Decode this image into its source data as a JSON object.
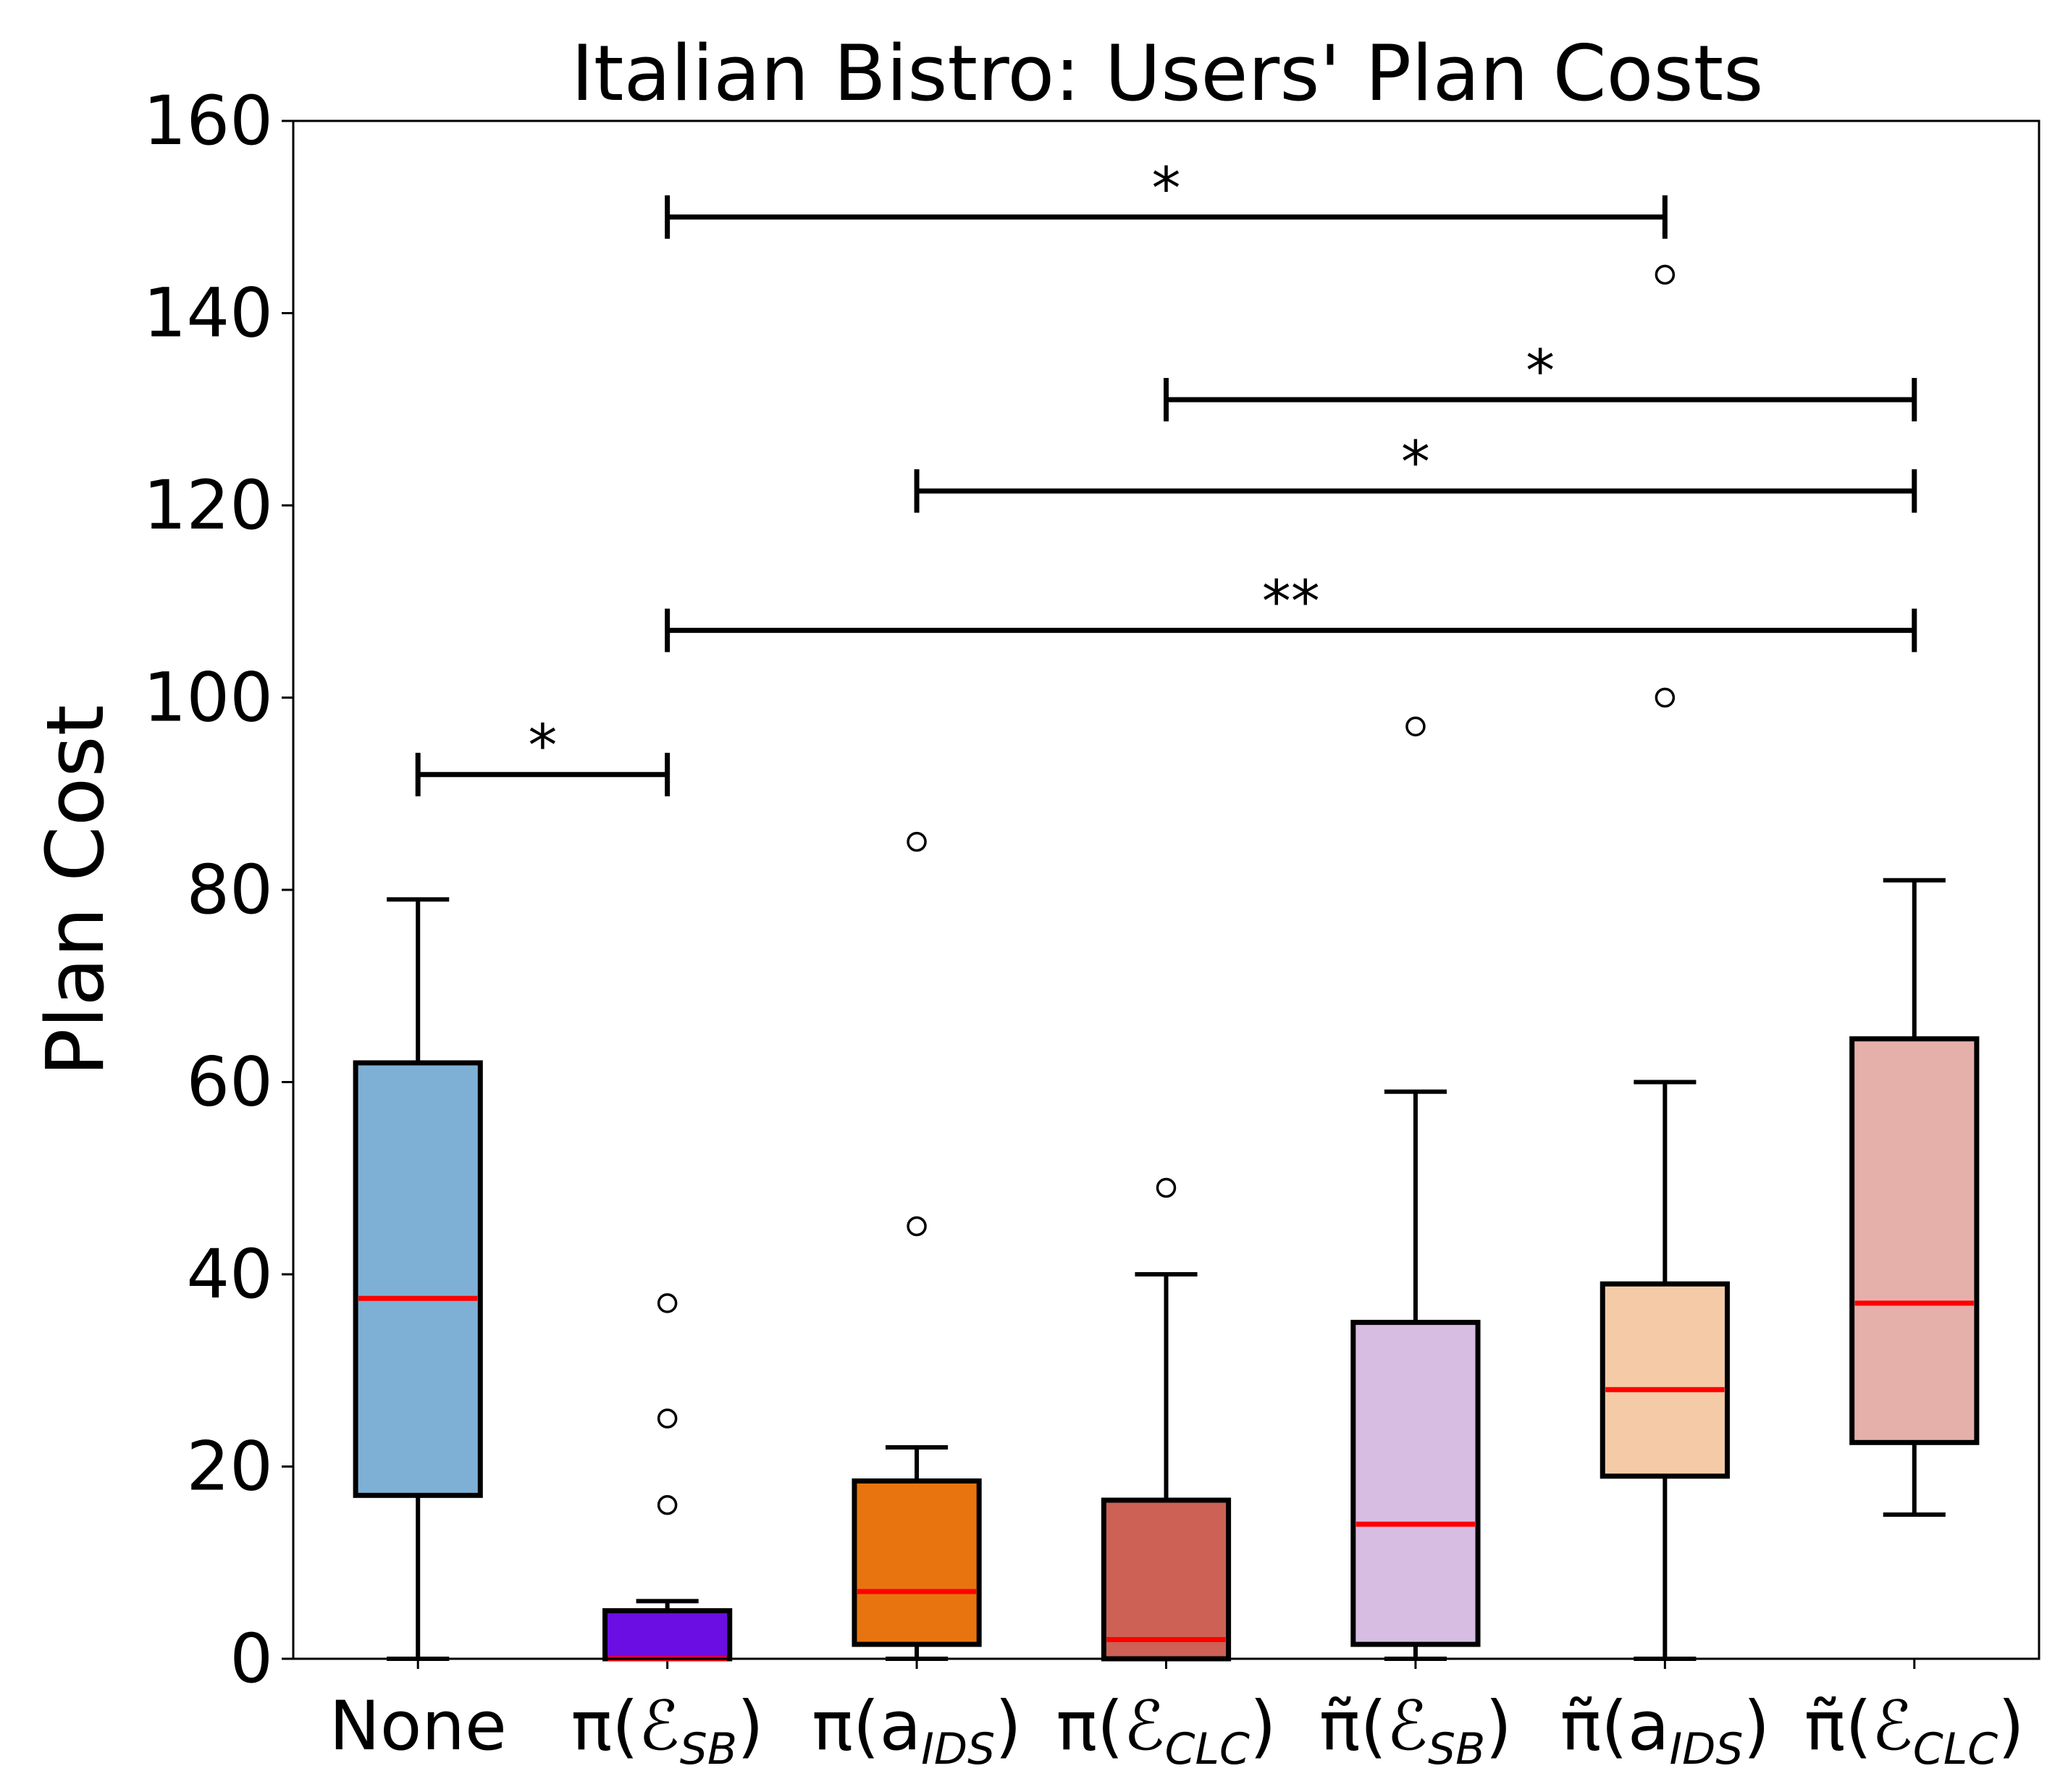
{
  "chart_data": {
    "type": "box",
    "title": "Italian Bistro: Users' Plan Costs",
    "xlabel": "",
    "ylabel": "Plan Cost",
    "ylim": [
      0,
      160
    ],
    "yticks": [
      "0",
      "20",
      "40",
      "60",
      "80",
      "100",
      "120",
      "140",
      "160"
    ],
    "grid": false,
    "median_color": "#ff0000",
    "series": [
      {
        "label": "None",
        "main": "None",
        "sub": "",
        "color": "#7eb0d5",
        "whisker_low": 0,
        "q1": 17,
        "median": 37.5,
        "q3": 62,
        "whisker_high": 79,
        "outliers": []
      },
      {
        "label": "π(ℰSB)",
        "main": "π(ℰ",
        "sub": "SB",
        "color": "#6a0ee3",
        "whisker_low": 0,
        "q1": 0,
        "median": 0,
        "q3": 5,
        "whisker_high": 6,
        "outliers": [
          16,
          25,
          37
        ]
      },
      {
        "label": "π(aIDS)",
        "main": "π(a",
        "sub": "IDS",
        "color": "#e8740f",
        "whisker_low": 0,
        "q1": 1.5,
        "median": 7,
        "q3": 18.5,
        "whisker_high": 22,
        "outliers": [
          45,
          85
        ]
      },
      {
        "label": "π(ℰCLC)",
        "main": "π(ℰ",
        "sub": "CLC",
        "color": "#cd6155",
        "whisker_low": 0,
        "q1": 0,
        "median": 2,
        "q3": 16.5,
        "whisker_high": 40,
        "outliers": [
          49
        ]
      },
      {
        "label": "π̃(ℰSB)",
        "main": "π̃(ℰ",
        "sub": "SB",
        "color": "#d7bde2",
        "whisker_low": 0,
        "q1": 1.5,
        "median": 14,
        "q3": 35,
        "whisker_high": 59,
        "outliers": [
          97
        ]
      },
      {
        "label": "π̃(aIDS)",
        "main": "π̃(a",
        "sub": "IDS",
        "color": "#f5cba7",
        "whisker_low": 0,
        "q1": 19,
        "median": 28,
        "q3": 39,
        "whisker_high": 60,
        "outliers": [
          100,
          144
        ]
      },
      {
        "label": "π̃(ℰCLC)",
        "main": "π̃(ℰ",
        "sub": "CLC",
        "color": "#e6b0aa",
        "whisker_low": 15,
        "q1": 22.5,
        "median": 37,
        "q3": 64.5,
        "whisker_high": 81,
        "outliers": []
      }
    ],
    "significance": [
      {
        "from": 0,
        "to": 1,
        "y": 92,
        "label": "*"
      },
      {
        "from": 1,
        "to": 6,
        "y": 107,
        "label": "**"
      },
      {
        "from": 2,
        "to": 6,
        "y": 121.5,
        "label": "*"
      },
      {
        "from": 3,
        "to": 6,
        "y": 131,
        "label": "*"
      },
      {
        "from": 1,
        "to": 5,
        "y": 150,
        "label": "*"
      }
    ]
  }
}
